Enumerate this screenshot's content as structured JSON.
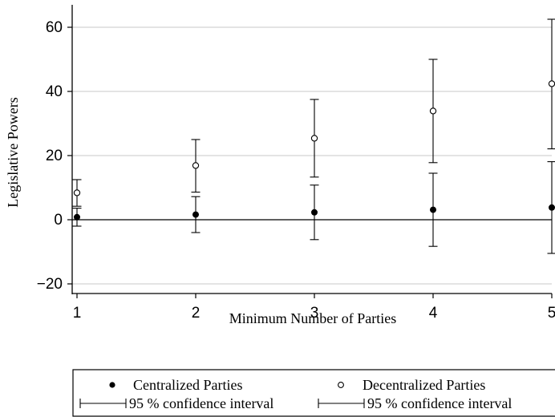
{
  "chart_data": {
    "type": "scatter",
    "title": "",
    "xlabel": "Minimum Number of Parties",
    "ylabel": "Legislative Powers",
    "x": [
      1,
      2,
      3,
      4,
      5
    ],
    "xticks": [
      "1",
      "2",
      "3",
      "4",
      "5"
    ],
    "yticks": [
      {
        "value": -20,
        "label": "−20"
      },
      {
        "value": 0,
        "label": "0"
      },
      {
        "value": 20,
        "label": "20"
      },
      {
        "value": 40,
        "label": "40"
      },
      {
        "value": 60,
        "label": "60"
      }
    ],
    "xlim": [
      1,
      5
    ],
    "ylim": [
      -23,
      67
    ],
    "grid": "horizontal",
    "reference_line": 0,
    "legend_position": "bottom",
    "series": [
      {
        "name": "Centralized Parties",
        "marker": "filled-circle",
        "values": [
          0.8,
          1.6,
          2.3,
          3.1,
          3.8
        ],
        "ci_low": [
          -2.0,
          -4.0,
          -6.2,
          -8.3,
          -10.5
        ],
        "ci_high": [
          3.6,
          7.2,
          10.8,
          14.5,
          18.1
        ],
        "ci_label": "95 % confidence interval"
      },
      {
        "name": "Decentralized Parties",
        "marker": "hollow-circle",
        "values": [
          8.4,
          16.9,
          25.4,
          33.9,
          42.4
        ],
        "ci_low": [
          4.2,
          8.6,
          13.3,
          17.8,
          22.1
        ],
        "ci_high": [
          12.5,
          25.0,
          37.5,
          50.0,
          62.5
        ],
        "ci_label": "95 % confidence interval"
      }
    ],
    "colors": {
      "marker": "#000000",
      "gridline": "#c8c8c8",
      "axis": "#000000"
    }
  }
}
